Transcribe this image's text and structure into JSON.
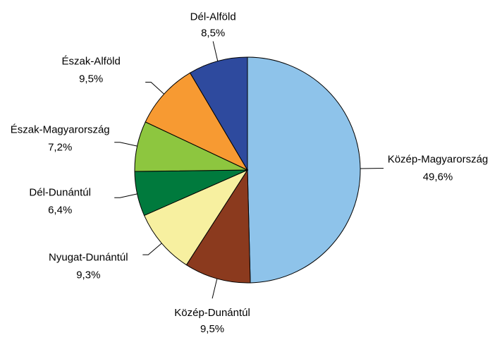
{
  "chart_data": {
    "type": "pie",
    "categories": [
      "Közép-Magyarország",
      "Közép-Dunántúl",
      "Nyugat-Dunántúl",
      "Dél-Dunántúl",
      "Észak-Magyarország",
      "Észak-Alföld",
      "Dél-Alföld"
    ],
    "values": [
      49.6,
      9.5,
      9.3,
      6.4,
      7.2,
      9.5,
      8.5
    ],
    "value_labels": [
      "49,6%",
      "9,5%",
      "9,3%",
      "6,4%",
      "7,2%",
      "9,5%",
      "8,5%"
    ],
    "colors": [
      "#8ec3ea",
      "#8b3a1e",
      "#f7f0a0",
      "#007a3d",
      "#8dc63f",
      "#f79a32",
      "#2e4a9e"
    ]
  }
}
